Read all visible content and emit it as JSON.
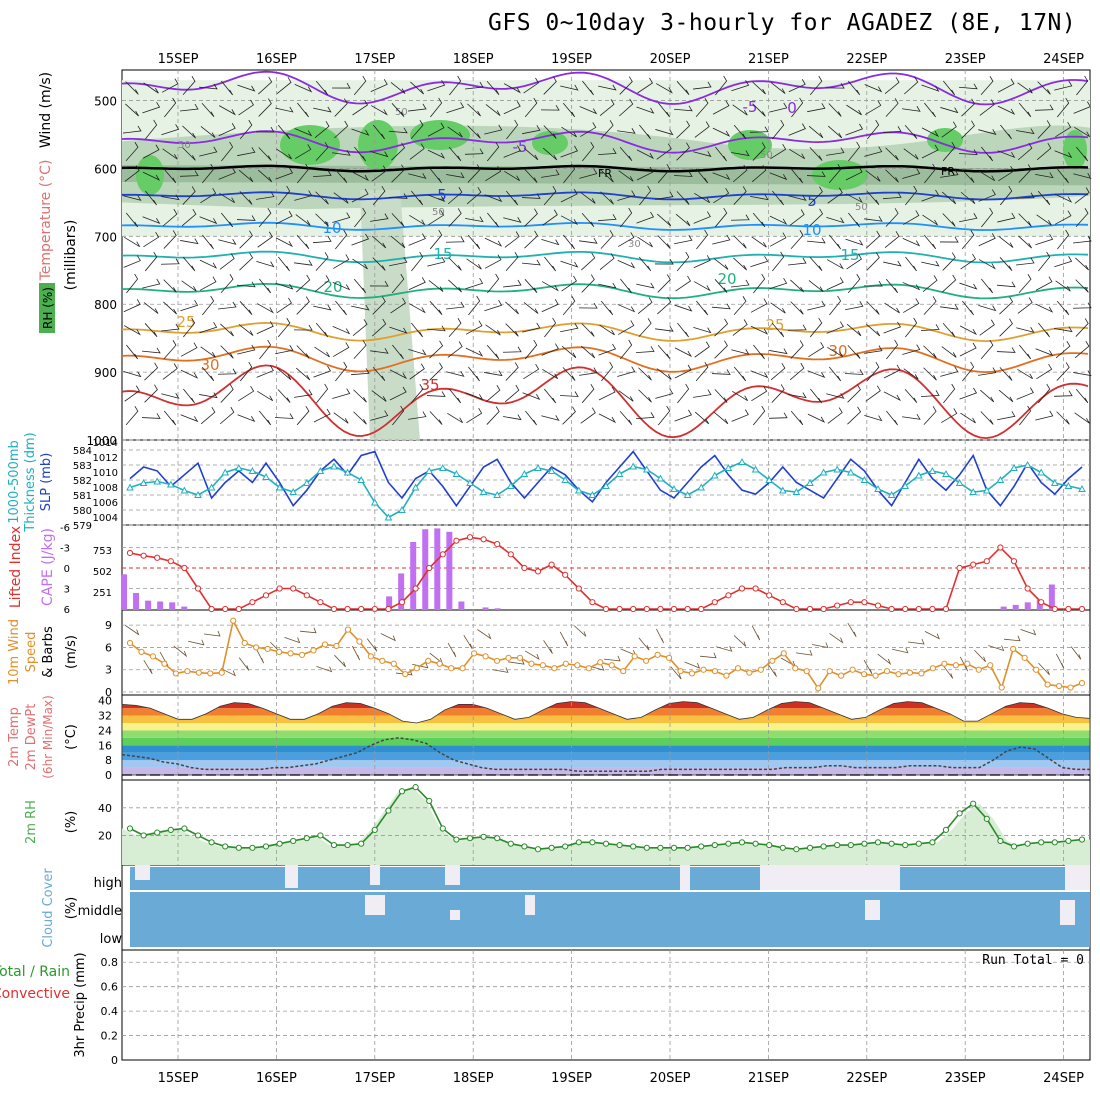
{
  "title": "GFS 0~10day 3-hourly for AGADEZ (8E, 17N)",
  "colors": {
    "wind_label": "#000000",
    "temp_label_a": "#e07070",
    "temp_label_b": "#8a2be2",
    "temp_label_c": "#ff8c00",
    "rh_green": "#4caf50",
    "cape_purple": "#c070f0",
    "lifted_red": "#e03030",
    "slp_blue": "#1f3fcf",
    "thick_cyan": "#20b0c0",
    "wind10_orange": "#e0902a",
    "cloud_blue": "#6aaad6",
    "precip_green": "#2a9a2a"
  },
  "date_labels": [
    "15SEP",
    "16SEP",
    "17SEP",
    "18SEP",
    "19SEP",
    "20SEP",
    "21SEP",
    "22SEP",
    "23SEP",
    "24SEP"
  ],
  "panels": {
    "upper": {
      "ylabel_wind": "Wind (m/s)",
      "ylabel_temp": "Temperature (°C)",
      "ylabel_rh": "RH (%)",
      "ylabel_mb": "(millibars)",
      "pressure_ticks": [
        "500",
        "600",
        "700",
        "800",
        "900",
        "1000"
      ],
      "isotherm_labels": [
        "-5",
        "0",
        "-5",
        "FR",
        "FR",
        "5",
        "5",
        "10",
        "10",
        "15",
        "15",
        "20",
        "20",
        "25",
        "25",
        "30",
        "30",
        "35"
      ],
      "rh_labels": [
        "50",
        "50",
        "50",
        "50",
        "30",
        "50"
      ]
    },
    "slp": {
      "ylabel_a": "1000-500mb",
      "ylabel_b": "Thickness (dm)",
      "ylabel_c": "SLP (mb)",
      "left_ticks": [
        "584",
        "583",
        "582",
        "581",
        "580",
        "579"
      ],
      "right_ticks": [
        "1014",
        "1012",
        "1010",
        "1008",
        "1006",
        "1004"
      ]
    },
    "cape": {
      "ylabel_a": "Lifted Index",
      "ylabel_b": "CAPE (J/kg)",
      "li_ticks": [
        "-6",
        "-3",
        "0",
        "3",
        "6"
      ],
      "cape_ticks": [
        "753",
        "502",
        "251"
      ]
    },
    "wind10": {
      "ylabel_a": "10m Wind",
      "ylabel_b": "Speed",
      "ylabel_c": "& Barbs",
      "ylabel_d": "(m/s)",
      "ticks": [
        "9",
        "6",
        "3",
        "0"
      ]
    },
    "temp2m": {
      "ylabel_a": "2m Temp",
      "ylabel_b": "2m DewPt",
      "ylabel_c": "(6hr Min/Max)",
      "ylabel_d": "(°C)",
      "ticks": [
        "40",
        "32",
        "24",
        "16",
        "8",
        "0"
      ]
    },
    "rh2m": {
      "ylabel_a": "2m RH",
      "ylabel_b": "(%)",
      "ticks": [
        "40",
        "20"
      ]
    },
    "cloud": {
      "ylabel_a": "Cloud Cover",
      "ylabel_b": "(%)",
      "levels": [
        "high",
        "middle",
        "low"
      ]
    },
    "precip": {
      "ylabel_a": "3hr Precip (mm)",
      "ylabel_b": "Total / Rain",
      "ylabel_c": "Convective",
      "run_total": "Run Total = 0",
      "ticks": [
        "0.8",
        "0.6",
        "0.4",
        "0.2",
        "0"
      ]
    }
  },
  "chart_data": [
    {
      "type": "line",
      "name": "slp_and_thickness",
      "x": "3-hourly steps, 15SEP to 24SEP",
      "series": [
        {
          "name": "SLP (mb)",
          "values": [
            1009.5,
            1011,
            1010.5,
            1008.5,
            1010,
            1011.5,
            1007,
            1009,
            1010.5,
            1009,
            1011.5,
            1009,
            1006,
            1008,
            1010.5,
            1012,
            1010,
            1012.5,
            1013,
            1009,
            1007,
            1009.5,
            1010.5,
            1008.5,
            1006,
            1008.5,
            1011,
            1012,
            1009,
            1007,
            1009,
            1011,
            1010,
            1008,
            1006.5,
            1009,
            1011,
            1013,
            1010.5,
            1008,
            1007,
            1009,
            1011,
            1012.5,
            1010,
            1008,
            1007.5,
            1009,
            1011,
            1009,
            1008,
            1007,
            1009.5,
            1012,
            1010.5,
            1008,
            1006,
            1009,
            1012,
            1009.5,
            1008,
            1010,
            1012.5,
            1008,
            1006,
            1008.5,
            1011.5,
            1009,
            1007.5,
            1009.5,
            1011
          ]
        },
        {
          "name": "1000-500mb Thickness (dm)",
          "values": [
            581.5,
            581.8,
            581.9,
            581.7,
            581.3,
            581,
            581.5,
            582.5,
            582.8,
            582.6,
            582.2,
            581.5,
            581.2,
            581.8,
            582.6,
            582.9,
            582.5,
            582,
            580.5,
            579.5,
            580,
            581.5,
            582.6,
            582.8,
            582.4,
            581.8,
            581.2,
            581,
            581.6,
            582.4,
            582.8,
            582.6,
            582,
            581.3,
            581,
            581.6,
            582.4,
            582.9,
            582.7,
            582.1,
            581.4,
            581,
            581.5,
            582.3,
            582.8,
            583.2,
            582.7,
            582,
            581.3,
            581.2,
            581.8,
            582.5,
            582.7,
            582.5,
            582,
            581.4,
            581,
            581.6,
            582.3,
            582.6,
            582.4,
            581.8,
            581.2,
            581.3,
            582,
            582.8,
            583,
            582.5,
            581.8,
            581.6,
            581.4
          ]
        }
      ],
      "ylim_left": [
        579,
        584
      ],
      "ylim_right": [
        1004,
        1014
      ]
    },
    {
      "type": "bar",
      "name": "cape_and_lifted_index",
      "series": [
        {
          "name": "CAPE (J/kg)",
          "values": [
            420,
            200,
            110,
            100,
            90,
            40,
            0,
            0,
            0,
            0,
            0,
            0,
            0,
            0,
            0,
            0,
            0,
            0,
            0,
            0,
            0,
            0,
            160,
            430,
            800,
            950,
            960,
            920,
            100,
            0,
            30,
            20,
            0,
            0,
            0,
            0,
            0,
            0,
            0,
            0,
            0,
            0,
            0,
            0,
            0,
            0,
            0,
            0,
            0,
            0,
            0,
            0,
            0,
            0,
            0,
            0,
            0,
            0,
            0,
            0,
            0,
            0,
            0,
            0,
            0,
            0,
            0,
            0,
            0,
            0,
            0,
            0,
            0,
            40,
            60,
            90,
            120,
            300,
            0,
            0,
            0
          ]
        },
        {
          "name": "Lifted Index",
          "values": [
            -2.2,
            -1.8,
            -1.5,
            -1,
            0,
            3,
            6,
            6,
            6,
            5,
            4,
            3,
            3,
            4,
            5,
            6,
            6,
            6,
            6,
            6,
            5,
            3,
            0,
            -2,
            -4,
            -4.5,
            -4.2,
            -3.5,
            -2,
            0,
            0.5,
            -0.5,
            1,
            3,
            5,
            6,
            6,
            6,
            6,
            6,
            6,
            6,
            6,
            5,
            4,
            3,
            3,
            4,
            5,
            6,
            6,
            6,
            5.5,
            5,
            5,
            5.5,
            6,
            6,
            6,
            6,
            6,
            0,
            -0.5,
            -1,
            -3,
            -1,
            3,
            5,
            6,
            6,
            6
          ]
        }
      ],
      "cape_ylim": [
        0,
        1000
      ],
      "li_ylim": [
        6,
        -6
      ]
    },
    {
      "type": "line",
      "name": "10m_wind_speed",
      "series": [
        {
          "name": "Speed (m/s)",
          "values": [
            6.6,
            5.4,
            4.8,
            3.8,
            2.5,
            2.8,
            2.6,
            2.5,
            2.6,
            9.6,
            6.6,
            6,
            5.8,
            5.4,
            5.2,
            5,
            5.6,
            6.4,
            6.2,
            8.4,
            6.8,
            4.8,
            4.2,
            3.8,
            2.4,
            3.2,
            4.2,
            3.8,
            3.2,
            3.2,
            5.2,
            4.8,
            4.2,
            4.6,
            4.6,
            3.8,
            3.6,
            3.2,
            3.8,
            3.6,
            3.2,
            4,
            3.6,
            2.8,
            4.8,
            4.2,
            5,
            4.6,
            2.8,
            2.5,
            3,
            2.8,
            2.2,
            3.2,
            2.6,
            3,
            4.2,
            5.2,
            3.2,
            2.8,
            0.5,
            2.8,
            2.2,
            3,
            2.4,
            2.2,
            2.8,
            2.4,
            2.6,
            2.5,
            3.2,
            3.8,
            3.6,
            3.8,
            3,
            3.6,
            0.6,
            5.8,
            4.6,
            3,
            1,
            0.8,
            0.6,
            1.2
          ]
        }
      ],
      "ylim": [
        0,
        10
      ]
    },
    {
      "type": "area",
      "name": "2m_temperature_and_dewpoint",
      "series": [
        {
          "name": "2m Temp (°C)",
          "values": [
            38,
            37.5,
            36,
            33,
            30,
            30,
            33,
            37,
            39,
            38.5,
            36,
            33,
            30,
            30,
            33,
            37,
            39,
            38.5,
            36,
            33,
            29,
            28,
            30,
            35,
            38,
            38,
            36,
            33,
            30,
            31,
            35,
            38.5,
            39.5,
            39,
            36,
            33,
            30,
            31,
            35,
            38.5,
            39.5,
            39,
            36,
            33,
            30,
            31,
            35,
            38.5,
            39.5,
            39,
            36,
            33,
            30,
            31,
            35,
            38.5,
            39.5,
            39,
            36,
            33,
            29,
            29,
            33,
            37,
            39,
            38.5,
            36,
            33,
            31,
            30.5
          ]
        },
        {
          "name": "2m DewPt (°C)",
          "values": [
            11,
            10,
            9,
            7,
            6,
            4,
            3,
            3,
            3,
            3,
            3,
            4,
            4,
            5,
            6,
            8,
            10,
            12,
            16,
            19,
            20,
            19,
            17,
            12,
            8,
            6,
            4,
            3,
            3,
            3,
            3,
            3,
            3,
            2,
            2,
            2,
            2,
            2,
            2,
            3,
            3,
            3,
            3,
            3,
            3,
            3,
            3,
            3,
            4,
            4,
            4,
            5,
            5,
            4,
            4,
            4,
            4,
            5,
            5,
            5,
            4,
            4,
            4,
            8,
            13,
            15,
            14,
            9,
            4,
            3,
            3
          ]
        }
      ],
      "ylim": [
        0,
        42
      ]
    },
    {
      "type": "line",
      "name": "2m_relative_humidity",
      "series": [
        {
          "name": "2m RH (%)",
          "values": [
            25,
            20,
            22,
            24,
            25,
            20,
            15,
            12,
            11,
            11,
            12,
            14,
            16,
            18,
            20,
            13,
            13,
            14,
            24,
            38,
            52,
            55,
            45,
            25,
            17,
            18,
            19,
            18,
            14,
            12,
            10,
            11,
            12,
            15,
            15,
            14,
            13,
            12,
            11,
            11,
            11,
            11,
            12,
            13,
            14,
            15,
            14,
            13,
            11,
            10,
            11,
            12,
            13,
            13,
            14,
            15,
            14,
            13,
            14,
            15,
            24,
            36,
            43,
            32,
            16,
            12,
            14,
            15,
            15,
            16,
            17
          ]
        }
      ],
      "ylim": [
        0,
        55
      ]
    },
    {
      "type": "area",
      "name": "3hr_precip",
      "series": [
        {
          "name": "Total / Rain (mm)",
          "values": [
            0
          ]
        },
        {
          "name": "Convective (mm)",
          "values": [
            0
          ]
        }
      ],
      "ylim": [
        0,
        0.9
      ],
      "run_total": 0
    }
  ]
}
